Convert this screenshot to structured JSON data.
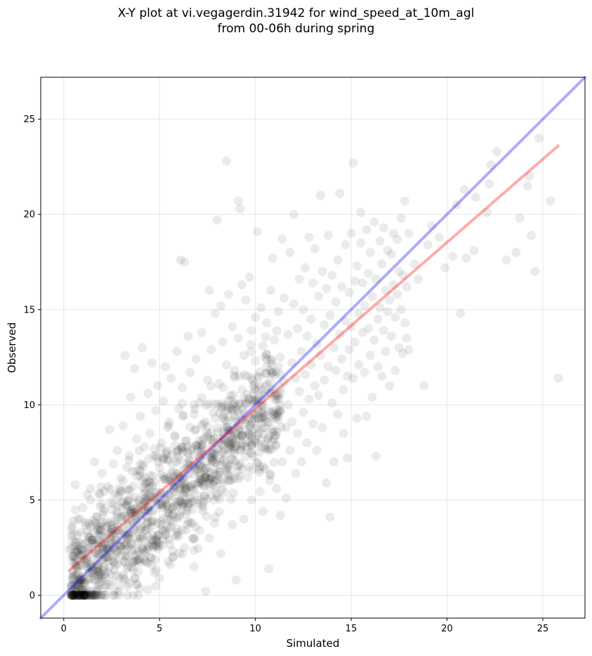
{
  "chart_data": {
    "type": "scatter",
    "title_line1": "X-Y plot at vi.vegagerdin.31942 for wind_speed_at_10m_agl",
    "title_line2": "from 00-06h during spring",
    "xlabel": "Simulated",
    "ylabel": "Observed",
    "xlim": [
      -1.2,
      27.2
    ],
    "ylim": [
      -1.2,
      27.2
    ],
    "xticks": [
      0,
      5,
      10,
      15,
      20,
      25
    ],
    "yticks": [
      0,
      5,
      10,
      15,
      20,
      25
    ],
    "grid": true,
    "point_color": "#000000",
    "point_opacity": 0.08,
    "identity_line": {
      "x": [
        -1.2,
        27.2
      ],
      "y": [
        -1.2,
        27.2
      ],
      "color": "#0000ff"
    },
    "regression_line": {
      "x": [
        0.3,
        25.8
      ],
      "y": [
        1.3,
        23.6
      ],
      "color": "#ff0000"
    },
    "points": [
      [
        0.3,
        2.4
      ],
      [
        0.4,
        0.5
      ],
      [
        0.5,
        1.0
      ],
      [
        0.5,
        3.2
      ],
      [
        0.6,
        5.8
      ],
      [
        0.7,
        1.5
      ],
      [
        0.8,
        0.8
      ],
      [
        0.8,
        2.1
      ],
      [
        0.9,
        0.3
      ],
      [
        0.9,
        3.3
      ],
      [
        1.0,
        1.0
      ],
      [
        1.0,
        4.6
      ],
      [
        1.1,
        0.6
      ],
      [
        1.1,
        2.7
      ],
      [
        1.2,
        1.8
      ],
      [
        1.3,
        0.2
      ],
      [
        1.3,
        3.8
      ],
      [
        1.4,
        5.0
      ],
      [
        1.4,
        5.6
      ],
      [
        1.5,
        1.3
      ],
      [
        1.5,
        2.9
      ],
      [
        1.6,
        0.8
      ],
      [
        1.6,
        7.0
      ],
      [
        1.7,
        2.2
      ],
      [
        1.7,
        4.1
      ],
      [
        1.8,
        0.3
      ],
      [
        1.8,
        1.6
      ],
      [
        1.9,
        3.4
      ],
      [
        1.9,
        5.3
      ],
      [
        2.0,
        0.9
      ],
      [
        2.0,
        2.6
      ],
      [
        2.0,
        6.4
      ],
      [
        2.1,
        1.9
      ],
      [
        2.1,
        4.4
      ],
      [
        2.2,
        0.4
      ],
      [
        2.2,
        3.0
      ],
      [
        2.3,
        5.7
      ],
      [
        2.3,
        1.2
      ],
      [
        2.4,
        8.7
      ],
      [
        2.4,
        2.4
      ],
      [
        2.5,
        3.7
      ],
      [
        2.5,
        0.7
      ],
      [
        2.6,
        6.9
      ],
      [
        2.6,
        4.8
      ],
      [
        2.7,
        1.6
      ],
      [
        2.7,
        2.9
      ],
      [
        2.8,
        5.2
      ],
      [
        2.8,
        7.6
      ],
      [
        2.9,
        3.4
      ],
      [
        2.9,
        0.5
      ],
      [
        3.0,
        4.1
      ],
      [
        3.0,
        2.1
      ],
      [
        3.1,
        6.0
      ],
      [
        3.1,
        8.9
      ],
      [
        3.2,
        12.6
      ],
      [
        3.2,
        3.2
      ],
      [
        3.3,
        4.7
      ],
      [
        3.3,
        1.4
      ],
      [
        3.4,
        7.1
      ],
      [
        3.4,
        5.5
      ],
      [
        3.5,
        10.4
      ],
      [
        3.5,
        2.7
      ],
      [
        3.6,
        3.9
      ],
      [
        3.6,
        6.5
      ],
      [
        3.7,
        11.9
      ],
      [
        3.7,
        0.9
      ],
      [
        3.8,
        4.3
      ],
      [
        3.8,
        8.2
      ],
      [
        3.9,
        5.0
      ],
      [
        3.9,
        2.3
      ],
      [
        4.0,
        9.4
      ],
      [
        4.0,
        6.9
      ],
      [
        4.1,
        3.6
      ],
      [
        4.1,
        13.0
      ],
      [
        4.2,
        4.9
      ],
      [
        4.2,
        7.8
      ],
      [
        4.3,
        1.8
      ],
      [
        4.3,
        5.9
      ],
      [
        4.4,
        10.6
      ],
      [
        4.4,
        3.1
      ],
      [
        4.5,
        8.5
      ],
      [
        4.5,
        6.3
      ],
      [
        4.6,
        12.2
      ],
      [
        4.6,
        4.4
      ],
      [
        4.7,
        2.6
      ],
      [
        4.7,
        7.3
      ],
      [
        4.8,
        9.7
      ],
      [
        4.8,
        5.4
      ],
      [
        4.9,
        11.0
      ],
      [
        4.9,
        3.8
      ],
      [
        5.0,
        6.7
      ],
      [
        5.0,
        0.9
      ],
      [
        5.1,
        8.0
      ],
      [
        5.1,
        4.6
      ],
      [
        5.2,
        10.2
      ],
      [
        5.2,
        2.9
      ],
      [
        5.3,
        6.1
      ],
      [
        5.3,
        12.0
      ],
      [
        5.4,
        5.1
      ],
      [
        5.4,
        7.6
      ],
      [
        5.5,
        3.5
      ],
      [
        5.5,
        9.1
      ],
      [
        5.6,
        6.4
      ],
      [
        5.6,
        11.4
      ],
      [
        5.7,
        4.2
      ],
      [
        5.7,
        2.0
      ],
      [
        5.8,
        8.4
      ],
      [
        5.8,
        5.7
      ],
      [
        5.9,
        12.8
      ],
      [
        5.9,
        7.0
      ],
      [
        6.0,
        3.1
      ],
      [
        6.0,
        9.8
      ],
      [
        6.1,
        17.6
      ],
      [
        6.1,
        6.0
      ],
      [
        6.2,
        4.8
      ],
      [
        6.2,
        10.9
      ],
      [
        6.3,
        17.5
      ],
      [
        6.3,
        2.5
      ],
      [
        6.4,
        8.1
      ],
      [
        6.4,
        5.6
      ],
      [
        6.5,
        13.6
      ],
      [
        6.5,
        7.4
      ],
      [
        6.6,
        3.8
      ],
      [
        6.6,
        11.7
      ],
      [
        6.7,
        6.8
      ],
      [
        6.7,
        4.5
      ],
      [
        6.8,
        9.5
      ],
      [
        6.8,
        1.5
      ],
      [
        6.9,
        12.4
      ],
      [
        6.9,
        8.7
      ],
      [
        7.0,
        5.2
      ],
      [
        7.0,
        6.6
      ],
      [
        7.1,
        10.1
      ],
      [
        7.1,
        3.4
      ],
      [
        7.2,
        13.8
      ],
      [
        7.2,
        7.9
      ],
      [
        7.3,
        4.9
      ],
      [
        7.3,
        9.0
      ],
      [
        7.4,
        0.2
      ],
      [
        7.4,
        6.2
      ],
      [
        7.5,
        11.3
      ],
      [
        7.5,
        8.3
      ],
      [
        7.6,
        16.0
      ],
      [
        7.6,
        3.0
      ],
      [
        7.7,
        7.2
      ],
      [
        7.7,
        12.9
      ],
      [
        7.8,
        5.8
      ],
      [
        7.8,
        9.6
      ],
      [
        7.9,
        14.8
      ],
      [
        7.9,
        4.1
      ],
      [
        8.0,
        8.8
      ],
      [
        8.0,
        19.7
      ],
      [
        8.1,
        6.5
      ],
      [
        8.1,
        11.1
      ],
      [
        8.2,
        15.2
      ],
      [
        8.2,
        2.2
      ],
      [
        8.3,
        7.5
      ],
      [
        8.3,
        13.3
      ],
      [
        8.4,
        9.2
      ],
      [
        8.4,
        5.4
      ],
      [
        8.5,
        22.8
      ],
      [
        8.5,
        12.1
      ],
      [
        8.6,
        8.0
      ],
      [
        8.6,
        15.8
      ],
      [
        8.7,
        6.0
      ],
      [
        8.7,
        10.5
      ],
      [
        8.8,
        14.1
      ],
      [
        8.8,
        3.7
      ],
      [
        8.9,
        7.7
      ],
      [
        8.9,
        11.8
      ],
      [
        9.0,
        0.8
      ],
      [
        9.0,
        9.9
      ],
      [
        9.1,
        20.7
      ],
      [
        9.1,
        13.5
      ],
      [
        9.2,
        20.3
      ],
      [
        9.2,
        6.8
      ],
      [
        9.3,
        16.3
      ],
      [
        9.3,
        10.8
      ],
      [
        9.4,
        4.0
      ],
      [
        9.4,
        12.6
      ],
      [
        9.5,
        8.6
      ],
      [
        9.5,
        15.5
      ],
      [
        9.6,
        6.2
      ],
      [
        9.6,
        11.5
      ],
      [
        9.7,
        16.7
      ],
      [
        9.7,
        9.3
      ],
      [
        9.8,
        13.9
      ],
      [
        9.8,
        5.0
      ],
      [
        9.9,
        10.2
      ],
      [
        9.9,
        7.3
      ],
      [
        10.0,
        14.6
      ],
      [
        10.0,
        12.3
      ],
      [
        10.1,
        19.1
      ],
      [
        10.1,
        8.4
      ],
      [
        10.2,
        6.6
      ],
      [
        10.2,
        11.0
      ],
      [
        10.3,
        15.1
      ],
      [
        10.3,
        9.0
      ],
      [
        10.4,
        4.4
      ],
      [
        10.4,
        13.1
      ],
      [
        10.5,
        7.9
      ],
      [
        10.5,
        10.6
      ],
      [
        10.6,
        14.3
      ],
      [
        10.6,
        12.0
      ],
      [
        10.7,
        1.4
      ],
      [
        10.7,
        9.7
      ],
      [
        10.8,
        16.0
      ],
      [
        10.8,
        6.3
      ],
      [
        10.9,
        11.7
      ],
      [
        10.9,
        17.7
      ],
      [
        11.0,
        8.2
      ],
      [
        11.0,
        13.4
      ],
      [
        11.1,
        10.3
      ],
      [
        11.1,
        5.6
      ],
      [
        11.2,
        14.9
      ],
      [
        11.2,
        9.4
      ],
      [
        11.3,
        12.5
      ],
      [
        11.3,
        4.2
      ],
      [
        11.4,
        18.7
      ],
      [
        11.4,
        7.0
      ],
      [
        11.5,
        11.2
      ],
      [
        11.5,
        15.6
      ],
      [
        11.6,
        8.8
      ],
      [
        11.6,
        5.1
      ],
      [
        11.7,
        13.7
      ],
      [
        11.7,
        10.0
      ],
      [
        11.8,
        18.0
      ],
      [
        11.8,
        7.6
      ],
      [
        11.9,
        12.2
      ],
      [
        11.9,
        9.1
      ],
      [
        12.0,
        20.0
      ],
      [
        12.0,
        15.3
      ],
      [
        12.1,
        11.4
      ],
      [
        12.1,
        6.4
      ],
      [
        12.2,
        14.0
      ],
      [
        12.2,
        8.5
      ],
      [
        12.3,
        16.6
      ],
      [
        12.3,
        10.7
      ],
      [
        12.4,
        12.8
      ],
      [
        12.4,
        7.0
      ],
      [
        12.5,
        15.0
      ],
      [
        12.5,
        9.6
      ],
      [
        12.6,
        17.2
      ],
      [
        12.6,
        11.6
      ],
      [
        12.7,
        13.6
      ],
      [
        12.7,
        8.0
      ],
      [
        12.8,
        18.8
      ],
      [
        12.8,
        10.3
      ],
      [
        12.9,
        14.5
      ],
      [
        12.9,
        12.1
      ],
      [
        13.0,
        9.0
      ],
      [
        13.0,
        16.4
      ],
      [
        13.1,
        11.0
      ],
      [
        13.1,
        18.2
      ],
      [
        13.2,
        13.2
      ],
      [
        13.2,
        7.6
      ],
      [
        13.3,
        15.7
      ],
      [
        13.3,
        10.5
      ],
      [
        13.4,
        21.0
      ],
      [
        13.4,
        12.6
      ],
      [
        13.5,
        17.0
      ],
      [
        13.5,
        8.8
      ],
      [
        13.6,
        14.2
      ],
      [
        13.6,
        11.3
      ],
      [
        13.7,
        5.9
      ],
      [
        13.7,
        16.1
      ],
      [
        13.8,
        12.0
      ],
      [
        13.8,
        18.9
      ],
      [
        13.9,
        4.1
      ],
      [
        13.9,
        14.7
      ],
      [
        14.0,
        10.1
      ],
      [
        14.0,
        16.8
      ],
      [
        14.1,
        13.0
      ],
      [
        14.1,
        7.0
      ],
      [
        14.2,
        15.4
      ],
      [
        14.2,
        11.8
      ],
      [
        14.3,
        17.6
      ],
      [
        14.3,
        9.5
      ],
      [
        14.4,
        21.1
      ],
      [
        14.4,
        13.7
      ],
      [
        14.5,
        12.4
      ],
      [
        14.5,
        16.2
      ],
      [
        14.6,
        10.8
      ],
      [
        14.6,
        8.5
      ],
      [
        14.7,
        18.4
      ],
      [
        14.7,
        14.4
      ],
      [
        14.8,
        11.5
      ],
      [
        14.8,
        7.2
      ],
      [
        14.9,
        15.9
      ],
      [
        14.9,
        12.9
      ],
      [
        15.0,
        19.0
      ],
      [
        15.0,
        14.1
      ],
      [
        15.1,
        22.7
      ],
      [
        15.1,
        11.4
      ],
      [
        15.2,
        16.5
      ],
      [
        15.2,
        13.3
      ],
      [
        15.3,
        9.3
      ],
      [
        15.3,
        17.3
      ],
      [
        15.4,
        14.8
      ],
      [
        15.4,
        12.1
      ],
      [
        15.5,
        20.1
      ],
      [
        15.5,
        18.5
      ],
      [
        15.6,
        13.8
      ],
      [
        15.6,
        16.4
      ],
      [
        15.7,
        11.7
      ],
      [
        15.7,
        15.2
      ],
      [
        15.8,
        9.4
      ],
      [
        15.8,
        19.2
      ],
      [
        15.9,
        14.0
      ],
      [
        15.9,
        16.9
      ],
      [
        16.0,
        12.6
      ],
      [
        16.0,
        18.0
      ],
      [
        16.1,
        10.4
      ],
      [
        16.1,
        15.7
      ],
      [
        16.2,
        13.4
      ],
      [
        16.2,
        19.6
      ],
      [
        16.3,
        7.3
      ],
      [
        16.3,
        16.6
      ],
      [
        16.4,
        14.5
      ],
      [
        16.4,
        12.0
      ],
      [
        16.5,
        18.6
      ],
      [
        16.5,
        15.1
      ],
      [
        16.6,
        11.5
      ],
      [
        16.6,
        17.4
      ],
      [
        16.7,
        13.9
      ],
      [
        16.7,
        19.3
      ],
      [
        16.8,
        16.0
      ],
      [
        16.8,
        12.8
      ],
      [
        16.9,
        14.9
      ],
      [
        16.9,
        18.1
      ],
      [
        17.0,
        11.0
      ],
      [
        17.0,
        15.5
      ],
      [
        17.1,
        17.9
      ],
      [
        17.1,
        13.6
      ],
      [
        17.2,
        19.0
      ],
      [
        17.2,
        16.3
      ],
      [
        17.3,
        11.8
      ],
      [
        17.3,
        14.6
      ],
      [
        17.4,
        18.7
      ],
      [
        17.4,
        15.8
      ],
      [
        17.5,
        13.0
      ],
      [
        17.5,
        17.0
      ],
      [
        17.6,
        19.8
      ],
      [
        17.6,
        15.0
      ],
      [
        17.7,
        16.8
      ],
      [
        17.7,
        12.7
      ],
      [
        17.8,
        20.7
      ],
      [
        17.8,
        14.3
      ],
      [
        17.9,
        13.5
      ],
      [
        17.9,
        16.2
      ],
      [
        18.0,
        19.0
      ],
      [
        18.0,
        12.9
      ],
      [
        18.5,
        16.6
      ],
      [
        18.8,
        11.0
      ],
      [
        19.0,
        18.4
      ],
      [
        19.2,
        19.4
      ],
      [
        19.9,
        17.2
      ],
      [
        20.3,
        17.8
      ],
      [
        20.5,
        20.5
      ],
      [
        20.7,
        14.8
      ],
      [
        20.9,
        21.3
      ],
      [
        21.0,
        17.7
      ],
      [
        21.4,
        18.1
      ],
      [
        22.1,
        20.1
      ],
      [
        22.3,
        22.6
      ],
      [
        22.6,
        23.3
      ],
      [
        23.1,
        17.6
      ],
      [
        23.6,
        18.0
      ],
      [
        23.8,
        19.8
      ],
      [
        24.2,
        21.5
      ],
      [
        24.3,
        22.0
      ],
      [
        24.4,
        18.9
      ],
      [
        24.6,
        17.0
      ],
      [
        24.8,
        24.0
      ],
      [
        25.4,
        20.7
      ],
      [
        25.8,
        11.4
      ],
      [
        22.2,
        21.6
      ],
      [
        21.5,
        20.9
      ],
      [
        19.6,
        18.8
      ],
      [
        18.3,
        17.4
      ]
    ]
  }
}
